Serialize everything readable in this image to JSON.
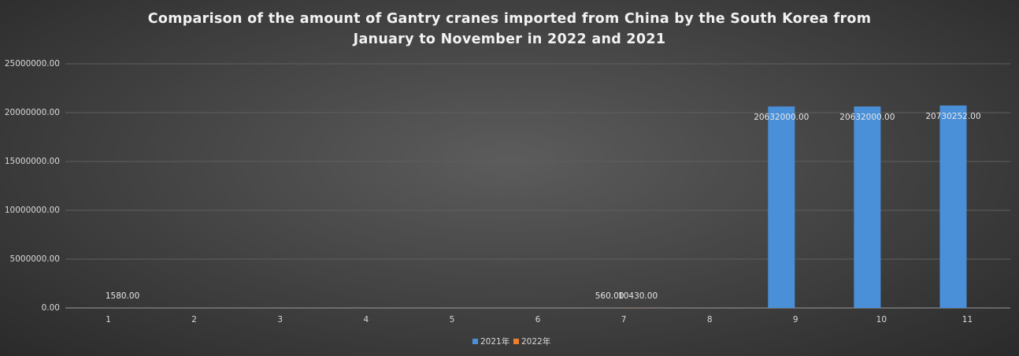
{
  "chart_data": {
    "type": "bar",
    "title": "Comparison of the amount of Gantry cranes imported from China by the South Korea from January to November in 2022 and 2021",
    "categories": [
      "1",
      "2",
      "3",
      "4",
      "5",
      "6",
      "7",
      "8",
      "9",
      "10",
      "11"
    ],
    "series": [
      {
        "name": "2021年",
        "color": "#4a90d9",
        "values": [
          null,
          null,
          null,
          null,
          null,
          null,
          560,
          null,
          20632000,
          20632000,
          20730252
        ],
        "value_labels": [
          null,
          null,
          null,
          null,
          null,
          null,
          "560.00",
          null,
          "20632000.00",
          "20632000.00",
          "20730252.00"
        ]
      },
      {
        "name": "2022年",
        "color": "#ed7d31",
        "values": [
          1580,
          null,
          null,
          null,
          null,
          null,
          10430,
          null,
          null,
          null,
          null
        ],
        "value_labels": [
          "1580.00",
          null,
          null,
          null,
          null,
          null,
          "10430.00",
          null,
          null,
          null,
          null
        ]
      }
    ],
    "ylim": [
      0,
      25000000
    ],
    "yticks": [
      {
        "value": 0,
        "label": "0.00"
      },
      {
        "value": 5000000,
        "label": "5000000.00"
      },
      {
        "value": 10000000,
        "label": "10000000.00"
      },
      {
        "value": 15000000,
        "label": "15000000.00"
      },
      {
        "value": 20000000,
        "label": "20000000.00"
      },
      {
        "value": 25000000,
        "label": "25000000.00"
      }
    ],
    "grid": true,
    "legend": "bottom"
  }
}
